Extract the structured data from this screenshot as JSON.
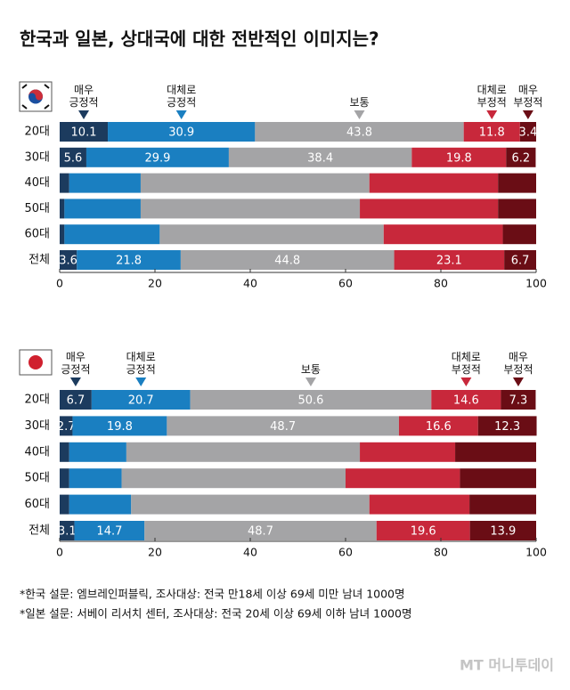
{
  "title": "한국과 일본, 상대국에 대한 전반적인 이미지는?",
  "chart_data": [
    {
      "type": "bar",
      "orientation": "horizontal",
      "stacked": true,
      "categories": [
        "20대",
        "30대",
        "40대",
        "50대",
        "60대",
        "전체"
      ],
      "series": [
        {
          "name": "매우\n긍정적",
          "color": "#1c3b5e",
          "values": [
            10.1,
            5.6,
            2,
            1,
            1,
            3.6
          ],
          "value_labels": [
            "10.1",
            "5.6",
            null,
            null,
            null,
            "3.6"
          ]
        },
        {
          "name": "대체로\n긍정적",
          "color": "#1a7fc1",
          "values": [
            30.9,
            29.9,
            15,
            16,
            20,
            21.8
          ],
          "value_labels": [
            "30.9",
            "29.9",
            null,
            null,
            null,
            "21.8"
          ]
        },
        {
          "name": "보통",
          "color": "#a4a4a6",
          "values": [
            43.8,
            38.4,
            48,
            46,
            47,
            44.8
          ],
          "value_labels": [
            "43.8",
            "38.4",
            null,
            null,
            null,
            "44.8"
          ]
        },
        {
          "name": "대체로\n부정적",
          "color": "#c8283b",
          "values": [
            11.8,
            19.8,
            27,
            29,
            25,
            23.1
          ],
          "value_labels": [
            "11.8",
            "19.8",
            null,
            null,
            null,
            "23.1"
          ]
        },
        {
          "name": "매우\n부정적",
          "color": "#6a0d15",
          "values": [
            3.4,
            6.2,
            8,
            8,
            7,
            6.7
          ],
          "value_labels": [
            "3.4",
            "6.2",
            null,
            null,
            null,
            "6.7"
          ]
        }
      ],
      "xlim": [
        0,
        100
      ],
      "xticks": [
        0,
        20,
        40,
        60,
        80,
        100
      ]
    },
    {
      "type": "bar",
      "orientation": "horizontal",
      "stacked": true,
      "categories": [
        "20대",
        "30대",
        "40대",
        "50대",
        "60대",
        "전체"
      ],
      "series": [
        {
          "name": "매우\n긍정적",
          "color": "#1c3b5e",
          "values": [
            6.7,
            2.7,
            2,
            2,
            2,
            3.1
          ],
          "value_labels": [
            "6.7",
            "2.7",
            null,
            null,
            null,
            "3.1"
          ]
        },
        {
          "name": "대체로\n긍정적",
          "color": "#1a7fc1",
          "values": [
            20.7,
            19.8,
            12,
            11,
            13,
            14.7
          ],
          "value_labels": [
            "20.7",
            "19.8",
            null,
            null,
            null,
            "14.7"
          ]
        },
        {
          "name": "보통",
          "color": "#a4a4a6",
          "values": [
            50.6,
            48.7,
            49,
            47,
            50,
            48.7
          ],
          "value_labels": [
            "50.6",
            "48.7",
            null,
            null,
            null,
            "48.7"
          ]
        },
        {
          "name": "대체로\n부정적",
          "color": "#c8283b",
          "values": [
            14.6,
            16.6,
            20,
            24,
            21,
            19.6
          ],
          "value_labels": [
            "14.6",
            "16.6",
            null,
            null,
            null,
            "19.6"
          ]
        },
        {
          "name": "매우\n부정적",
          "color": "#6a0d15",
          "values": [
            7.3,
            12.3,
            17,
            16,
            14,
            13.9
          ],
          "value_labels": [
            "7.3",
            "12.3",
            null,
            null,
            null,
            "13.9"
          ]
        }
      ],
      "xlim": [
        0,
        100
      ],
      "xticks": [
        0,
        20,
        40,
        60,
        80,
        100
      ]
    }
  ],
  "footnotes": [
    "*한국 설문: 엠브레인퍼블릭, 조사대상: 전국 만18세 이상 69세 미만 남녀 1000명",
    "*일본 설문: 서베이 리서치 센터, 조사대상: 전국 20세 이상 69세 이하 남녀 1000명"
  ],
  "watermark": "MT 머니투데이"
}
